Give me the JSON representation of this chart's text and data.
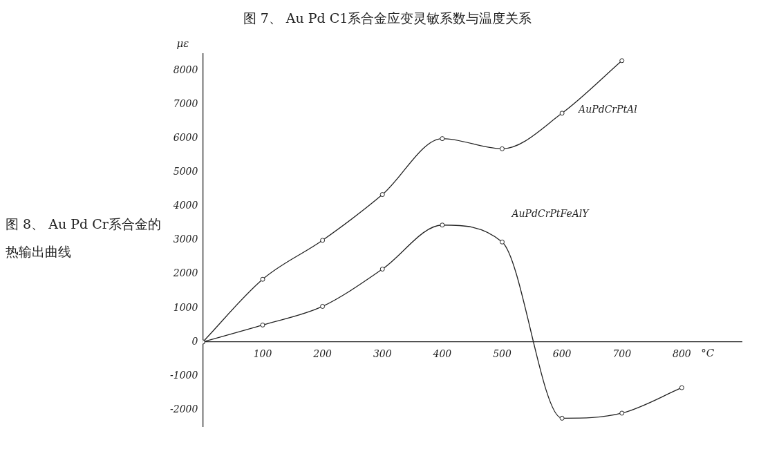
{
  "chart_data": {
    "type": "line",
    "title": "图 8、 Au Pd Cr系合金的热输出曲线",
    "annotations": [
      "图 7、 Au Pd C1系合金应变灵敏系数与温度关系"
    ],
    "xlabel": "°C",
    "ylabel": "με",
    "x": [
      0,
      100,
      200,
      300,
      400,
      500,
      600,
      700,
      800
    ],
    "series": [
      {
        "name": "AuPdCrPtAl",
        "color": "#222222",
        "values": [
          0,
          1850,
          3000,
          4350,
          6000,
          5700,
          6750,
          8300,
          null
        ]
      },
      {
        "name": "AuPdCrPtFeAlY",
        "color": "#222222",
        "values": [
          0,
          500,
          1050,
          2150,
          3450,
          2950,
          -2250,
          -2100,
          -1350
        ]
      }
    ],
    "xlim": [
      0,
      900
    ],
    "xticks": [
      100,
      200,
      300,
      400,
      500,
      600,
      700,
      800
    ],
    "ylim": [
      -2500,
      8500
    ],
    "yticks": [
      -2000,
      -1000,
      0,
      1000,
      2000,
      3000,
      4000,
      5000,
      6000,
      7000,
      8000
    ],
    "grid": false,
    "legend": false,
    "marker": "circle",
    "line_style": "solid"
  }
}
